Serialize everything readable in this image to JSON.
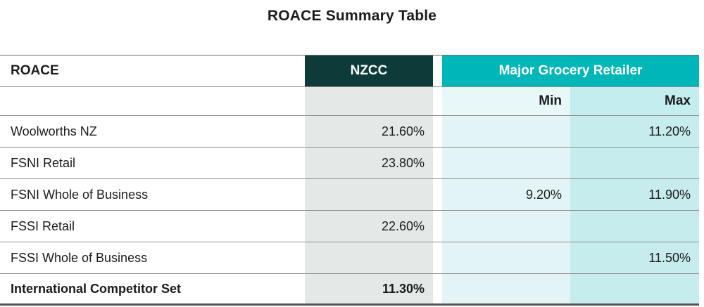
{
  "title": "ROACE Summary Table",
  "table": {
    "header": {
      "roace": "ROACE",
      "nzcc": "NZCC",
      "major": "Major Grocery Retailer",
      "min": "Min",
      "max": "Max"
    },
    "rows": [
      {
        "label": "Woolworths NZ",
        "nzcc": "21.60%",
        "min": "",
        "max": "11.20%"
      },
      {
        "label": "FSNI Retail",
        "nzcc": "23.80%",
        "min": "",
        "max": ""
      },
      {
        "label": "FSNI Whole of Business",
        "nzcc": "",
        "min": "9.20%",
        "max": "11.90%"
      },
      {
        "label": "FSSI Retail",
        "nzcc": "22.60%",
        "min": "",
        "max": ""
      },
      {
        "label": "FSSI Whole of Business",
        "nzcc": "",
        "min": "",
        "max": "11.50%"
      },
      {
        "label": "International Competitor Set",
        "nzcc": "11.30%",
        "min": "",
        "max": ""
      }
    ],
    "colors": {
      "nzcc_header_bg": "#0d3b39",
      "major_header_bg": "#00b6b8",
      "nzcc_column_bg": "#e4e9e8",
      "min_column_bg": "#e3f4f6",
      "max_column_bg": "#c6ecee"
    }
  },
  "chart_data": {
    "type": "table",
    "title": "ROACE Summary Table",
    "columns": [
      "ROACE",
      "NZCC",
      "Major Grocery Retailer Min",
      "Major Grocery Retailer Max"
    ],
    "rows": [
      [
        "Woolworths NZ",
        "21.60%",
        "",
        "11.20%"
      ],
      [
        "FSNI Retail",
        "23.80%",
        "",
        ""
      ],
      [
        "FSNI Whole of Business",
        "",
        "9.20%",
        "11.90%"
      ],
      [
        "FSSI Retail",
        "22.60%",
        "",
        ""
      ],
      [
        "FSSI Whole of Business",
        "",
        "",
        "11.50%"
      ],
      [
        "International Competitor Set",
        "11.30%",
        "",
        ""
      ]
    ]
  }
}
